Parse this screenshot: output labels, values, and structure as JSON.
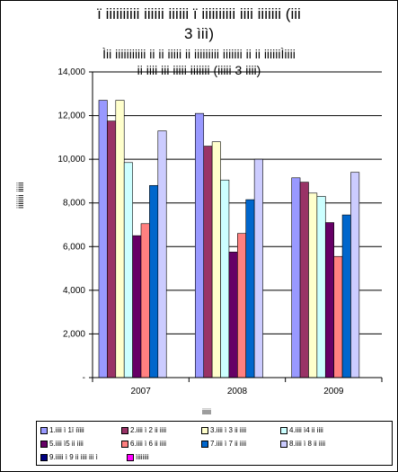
{
  "chart_data": {
    "type": "bar",
    "title_lines": [
      "ï iiiiiiiiii iiiiii iiiiii ï iiiiiiiiii iiii iiiiiii (iii",
      "3 ìiì)"
    ],
    "subtitle_lines": [
      "Ìii iiiiiiiiiii ii ii iiiii ii iiiiiiiii iiiiiii ii ii iiiiiiÌiiii",
      "ii iiii iii iiiii iiiiiii (iiiii 3 iiii)"
    ],
    "xlabel": "iiiii",
    "ylabel": "iiiiiii iiiii",
    "categories": [
      "2007",
      "2008",
      "2009"
    ],
    "ylim": [
      0,
      14000
    ],
    "yticks": [
      0,
      2000,
      4000,
      6000,
      8000,
      10000,
      12000,
      14000
    ],
    "ytick_labels": [
      "-",
      "2,000",
      "4,000",
      "6,000",
      "8,000",
      "10,000",
      "12,000",
      "14,000"
    ],
    "grid": true,
    "legend_position": "bottom",
    "series": [
      {
        "name": "1.iiii ì 1ï iïiii",
        "color": "#9999ff",
        "values": [
          12700,
          12100,
          9150
        ]
      },
      {
        "name": "2.iiii ì 2 ii iiii",
        "color": "#993366",
        "values": [
          11750,
          10600,
          8950
        ]
      },
      {
        "name": "3.iiii ì 3 ii iiii",
        "color": "#ffffcc",
        "values": [
          12700,
          10800,
          8450
        ]
      },
      {
        "name": "4.iiii ì4 ii iiii",
        "color": "#ccffff",
        "values": [
          9850,
          9050,
          8300
        ]
      },
      {
        "name": "5.iiii ì5 ii iiii",
        "color": "#660066",
        "values": [
          6500,
          5750,
          7100
        ]
      },
      {
        "name": "6.iiii ì 6 ii iiii",
        "color": "#ff8080",
        "values": [
          7050,
          6600,
          5550
        ]
      },
      {
        "name": "7.iiii ì 7 ii iiii",
        "color": "#0066cc",
        "values": [
          8800,
          8150,
          7450
        ]
      },
      {
        "name": "8.iiii ì 8 ii iiii",
        "color": "#ccccff",
        "values": [
          11300,
          10000,
          9400
        ]
      },
      {
        "name": "9.iiiii ì 9 ii iiii iii ì",
        "color": "#000080",
        "values": [
          0,
          0,
          0
        ]
      },
      {
        "name": "ìiiiiiii",
        "color": "#ff00ff",
        "values": [
          0,
          0,
          0
        ]
      }
    ]
  }
}
